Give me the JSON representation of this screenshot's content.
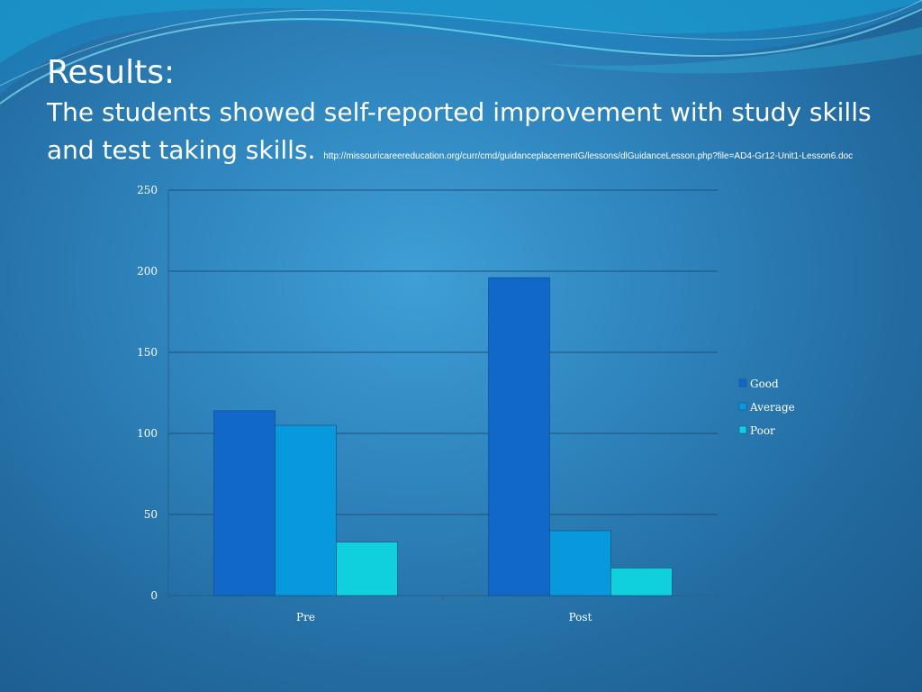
{
  "slide": {
    "title": "Results:",
    "subtitle": "The students showed self-reported improvement with study skills and test taking skills.",
    "source": "http://missouricareereducation.org/curr/cmd/guidanceplacementG/lessons/dlGuidanceLesson.php?file=AD4-Gr12-Unit1-Lesson6.doc"
  },
  "colors": {
    "background": "#2f85bd",
    "gridline": "#1f4f78",
    "axis": "#2a5f88"
  },
  "chart_data": {
    "type": "bar",
    "categories": [
      "Pre",
      "Post"
    ],
    "series": [
      {
        "name": "Good",
        "values": [
          114,
          196
        ],
        "color": "#1268c8"
      },
      {
        "name": "Average",
        "values": [
          105,
          40
        ],
        "color": "#0899dd"
      },
      {
        "name": "Poor",
        "values": [
          33,
          17
        ],
        "color": "#0fd0dc"
      }
    ],
    "ylim": [
      0,
      250
    ],
    "yticks": [
      0,
      50,
      100,
      150,
      200,
      250
    ],
    "grid": true,
    "legend": "right",
    "xlabel": "",
    "ylabel": ""
  }
}
